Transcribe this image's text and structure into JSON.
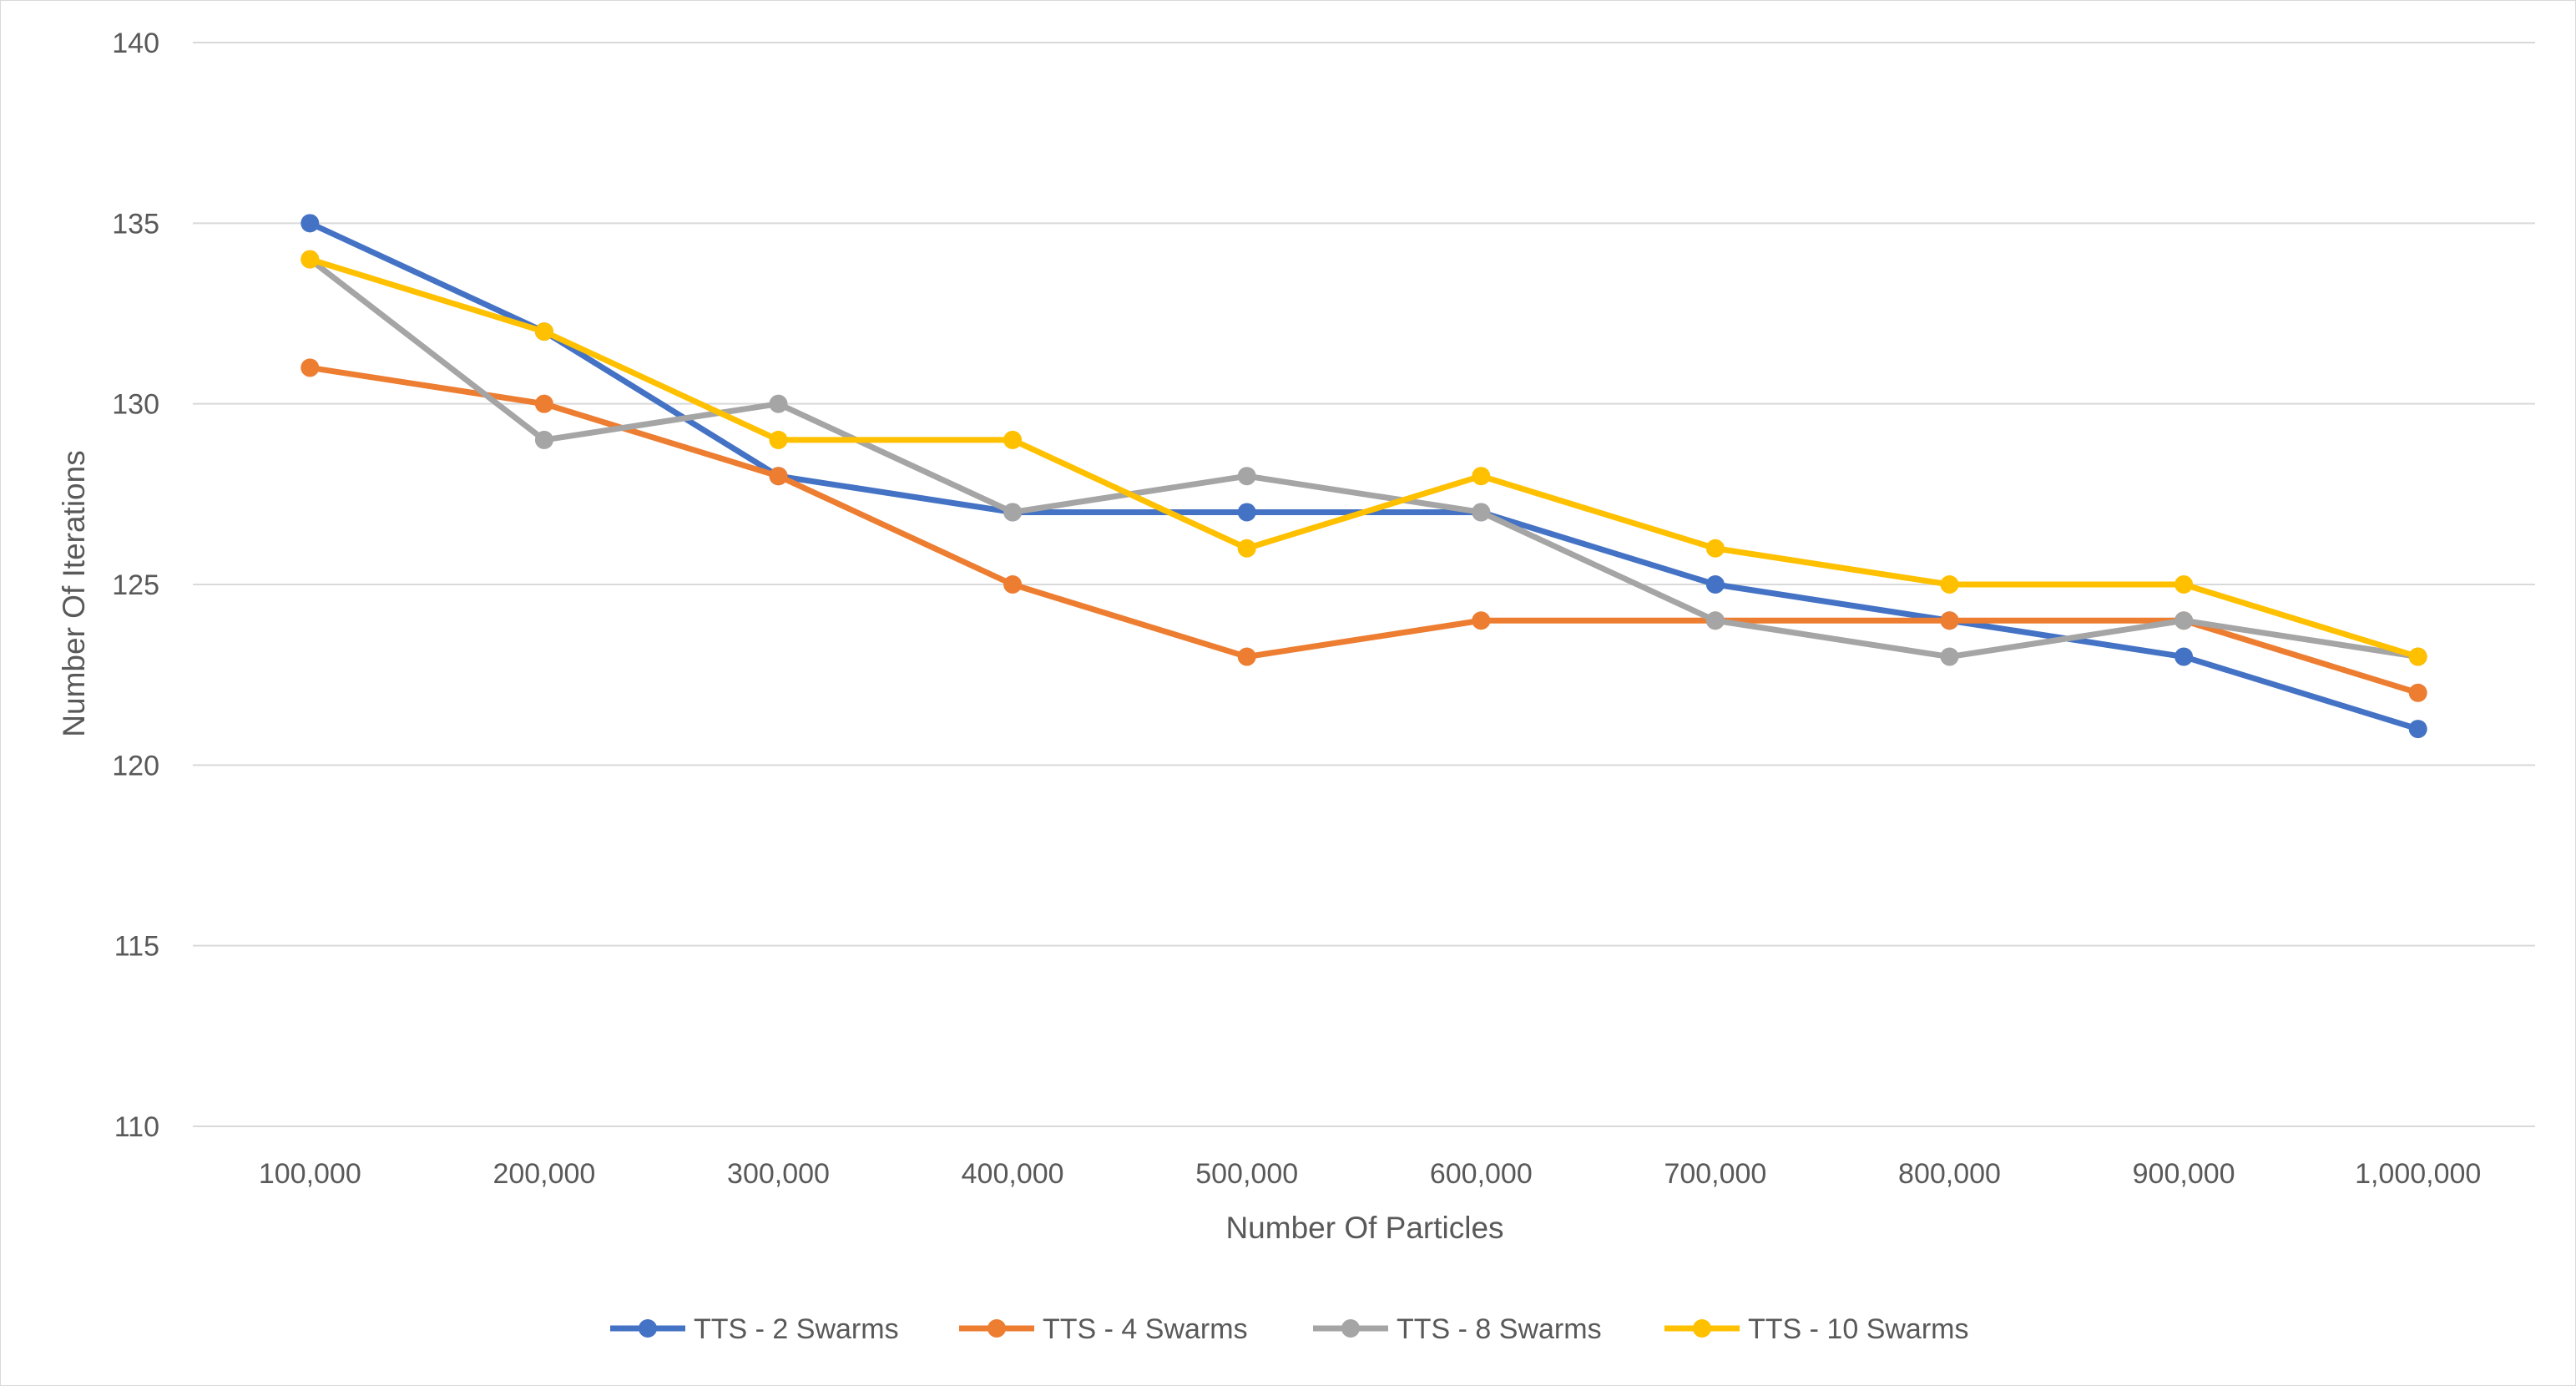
{
  "chart_data": {
    "type": "line",
    "title": "",
    "xlabel": "Number Of Particles",
    "ylabel": "Number Of Iterations",
    "ylim": [
      110,
      140
    ],
    "yticks": [
      110,
      115,
      120,
      125,
      130,
      135,
      140
    ],
    "grid": true,
    "legend_position": "bottom",
    "categories": [
      "100,000",
      "200,000",
      "300,000",
      "400,000",
      "500,000",
      "600,000",
      "700,000",
      "800,000",
      "900,000",
      "1,000,000"
    ],
    "series": [
      {
        "name": "TTS - 2 Swarms",
        "color": "#4472c4",
        "values": [
          135,
          132,
          128,
          127,
          127,
          127,
          125,
          124,
          123,
          121
        ]
      },
      {
        "name": "TTS - 4 Swarms",
        "color": "#ed7d31",
        "values": [
          131,
          130,
          128,
          125,
          123,
          124,
          124,
          124,
          124,
          122
        ]
      },
      {
        "name": "TTS - 8 Swarms",
        "color": "#a5a5a5",
        "values": [
          134,
          129,
          130,
          127,
          128,
          127,
          124,
          123,
          124,
          123
        ]
      },
      {
        "name": "TTS - 10 Swarms",
        "color": "#ffc000",
        "values": [
          134,
          132,
          129,
          129,
          126,
          128,
          126,
          125,
          125,
          123
        ]
      }
    ]
  }
}
